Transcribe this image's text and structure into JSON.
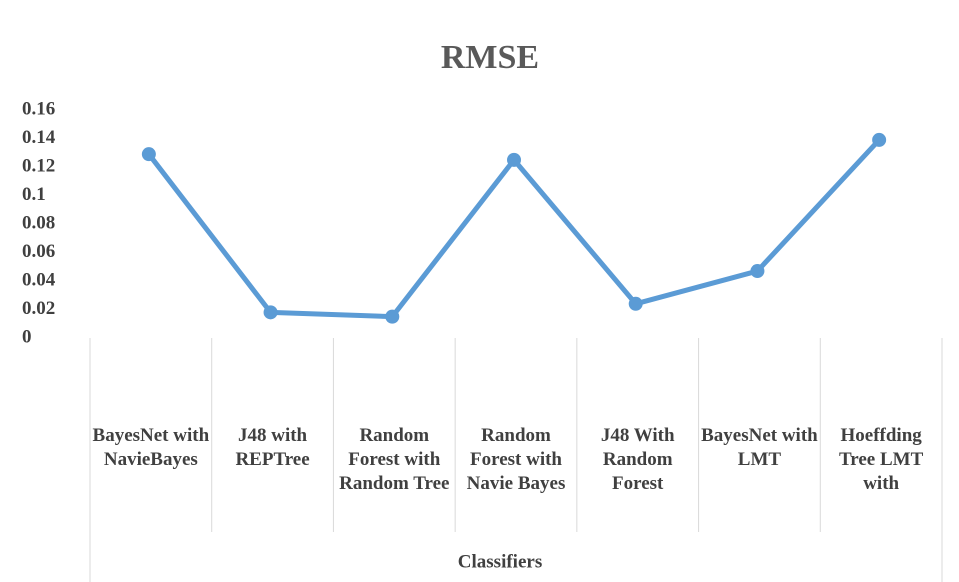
{
  "chart_data": {
    "type": "line",
    "title": "RMSE",
    "x_label": "Classifiers",
    "categories": [
      "BayesNet with NavieBayes",
      "J48 with REPTree",
      "Random Forest with Random Tree",
      "Random Forest with Navie Bayes",
      "J48 With Random Forest",
      "BayesNet with LMT",
      "Hoeffding Tree LMT with"
    ],
    "series": [
      {
        "name": "RMSE",
        "color": "#5b9bd5",
        "values": [
          0.129,
          0.018,
          0.015,
          0.125,
          0.024,
          0.047,
          0.139
        ]
      }
    ],
    "ylim": [
      0,
      0.16
    ],
    "yticks": [
      0,
      0.02,
      0.04,
      0.06,
      0.08,
      0.1,
      0.12,
      0.14,
      0.16
    ],
    "grid": false
  }
}
